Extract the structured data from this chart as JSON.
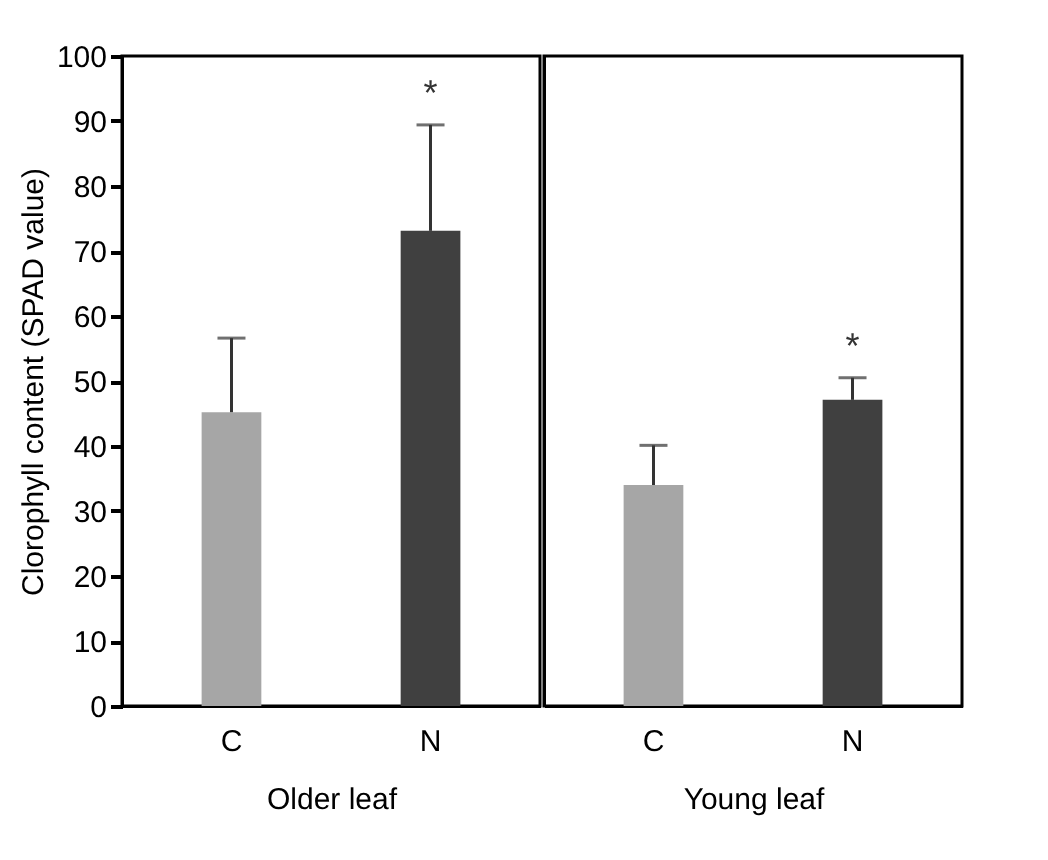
{
  "chart_data": [
    {
      "type": "bar",
      "categories": [
        "C",
        "N"
      ],
      "xlabel": "Older leaf",
      "ylabel": "Clorophyll content (SPAD value)",
      "colors": [
        "#a6a6a6",
        "#404040"
      ],
      "values": [
        45.2,
        73.1
      ],
      "errors": [
        [
          45.2,
          56.6
        ],
        [
          73.1,
          89.4
        ]
      ],
      "ylim": [
        0,
        100
      ],
      "yticks": [
        0,
        10,
        20,
        30,
        40,
        50,
        60,
        70,
        80,
        90,
        100
      ],
      "annotations": [
        {
          "text": "*",
          "x": "N",
          "y": 89.4
        }
      ]
    },
    {
      "type": "bar",
      "categories": [
        "C",
        "N"
      ],
      "xlabel": "Young leaf",
      "colors": [
        "#a6a6a6",
        "#404040"
      ],
      "values": [
        34.0,
        47.1
      ],
      "errors": [
        [
          34.0,
          40.1
        ],
        [
          47.1,
          50.5
        ]
      ],
      "ylim": [
        0,
        100
      ],
      "tick_labels": "x",
      "annotations": [
        {
          "text": "*",
          "x": "N",
          "y": 50.5
        }
      ]
    }
  ]
}
